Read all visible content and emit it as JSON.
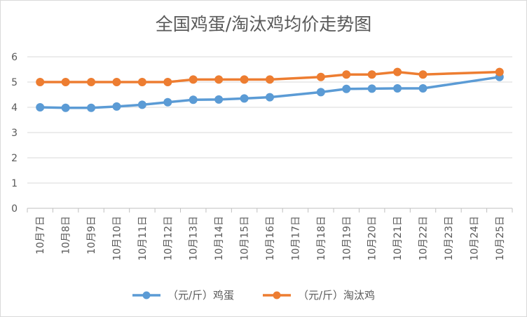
{
  "chart_data": {
    "type": "line",
    "title": "全国鸡蛋/淘汰鸡均价走势图",
    "xlabel": "",
    "ylabel": "",
    "ylim": [
      0,
      6
    ],
    "yticks": [
      "0",
      "1",
      "2",
      "3",
      "4",
      "5",
      "6"
    ],
    "grid": true,
    "legend_position": "bottom",
    "categories": [
      "10月7日",
      "10月8日",
      "10月9日",
      "10月10日",
      "10月11日",
      "10月12日",
      "10月13日",
      "10月14日",
      "10月15日",
      "10月16日",
      "10月17日",
      "10月18日",
      "10月19日",
      "10月20日",
      "10月21日",
      "10月22日",
      "10月23日",
      "10月24日",
      "10月25日"
    ],
    "series": [
      {
        "name": "（元/斤）鸡蛋",
        "color": "#5b9bd5",
        "values": [
          4.0,
          3.98,
          3.98,
          4.03,
          4.1,
          4.2,
          4.3,
          4.31,
          4.35,
          4.4,
          null,
          4.6,
          4.73,
          4.74,
          4.75,
          4.75,
          null,
          null,
          5.2
        ]
      },
      {
        "name": "（元/斤）淘汰鸡",
        "color": "#ed7d31",
        "values": [
          5.0,
          5.0,
          5.0,
          5.0,
          5.0,
          5.0,
          5.1,
          5.1,
          5.1,
          5.1,
          null,
          5.2,
          5.3,
          5.3,
          5.4,
          5.3,
          null,
          null,
          5.4
        ]
      }
    ]
  }
}
